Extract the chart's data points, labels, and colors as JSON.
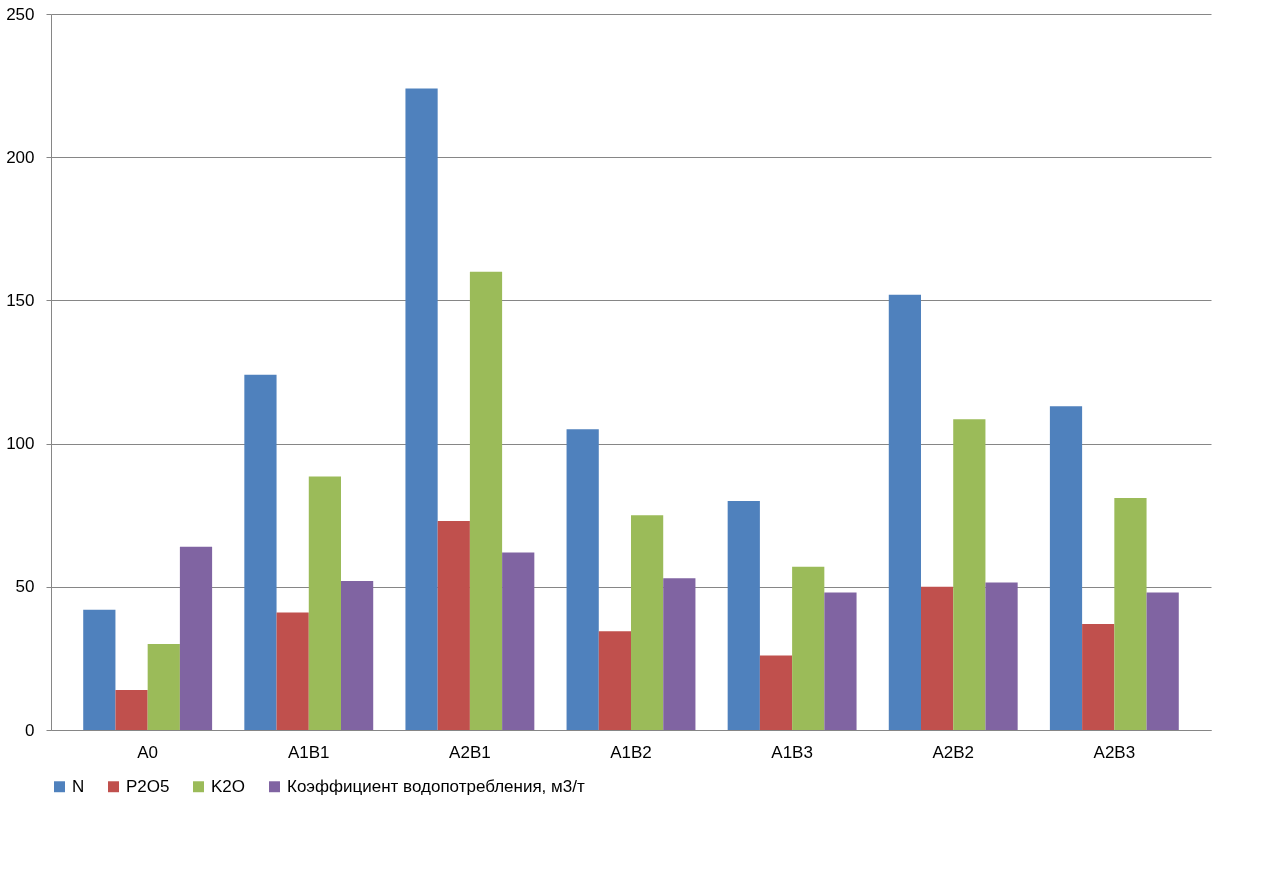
{
  "chart_data": {
    "type": "bar",
    "categories": [
      "A0",
      "A1B1",
      "A2B1",
      "A1B2",
      "A1B3",
      "A2B2",
      "A2B3"
    ],
    "series": [
      {
        "name": "N",
        "color": "#4f81bd",
        "values": [
          42,
          124,
          224,
          105,
          80,
          152,
          113
        ]
      },
      {
        "name": "P2O5",
        "color": "#c0504d",
        "values": [
          14,
          41,
          73,
          34.5,
          26,
          50,
          37
        ]
      },
      {
        "name": "K2O",
        "color": "#9bbb59",
        "values": [
          30,
          88.5,
          160,
          75,
          57,
          108.5,
          81
        ]
      },
      {
        "name": "Коэффициент водопотребления, м3/т",
        "color": "#8064a2",
        "values": [
          64,
          52,
          62,
          53,
          48,
          51.5,
          48
        ]
      }
    ],
    "ylim": [
      0,
      250
    ],
    "yticks": [
      0,
      50,
      100,
      150,
      200,
      250
    ],
    "grid": "y",
    "legend": "bottom"
  }
}
